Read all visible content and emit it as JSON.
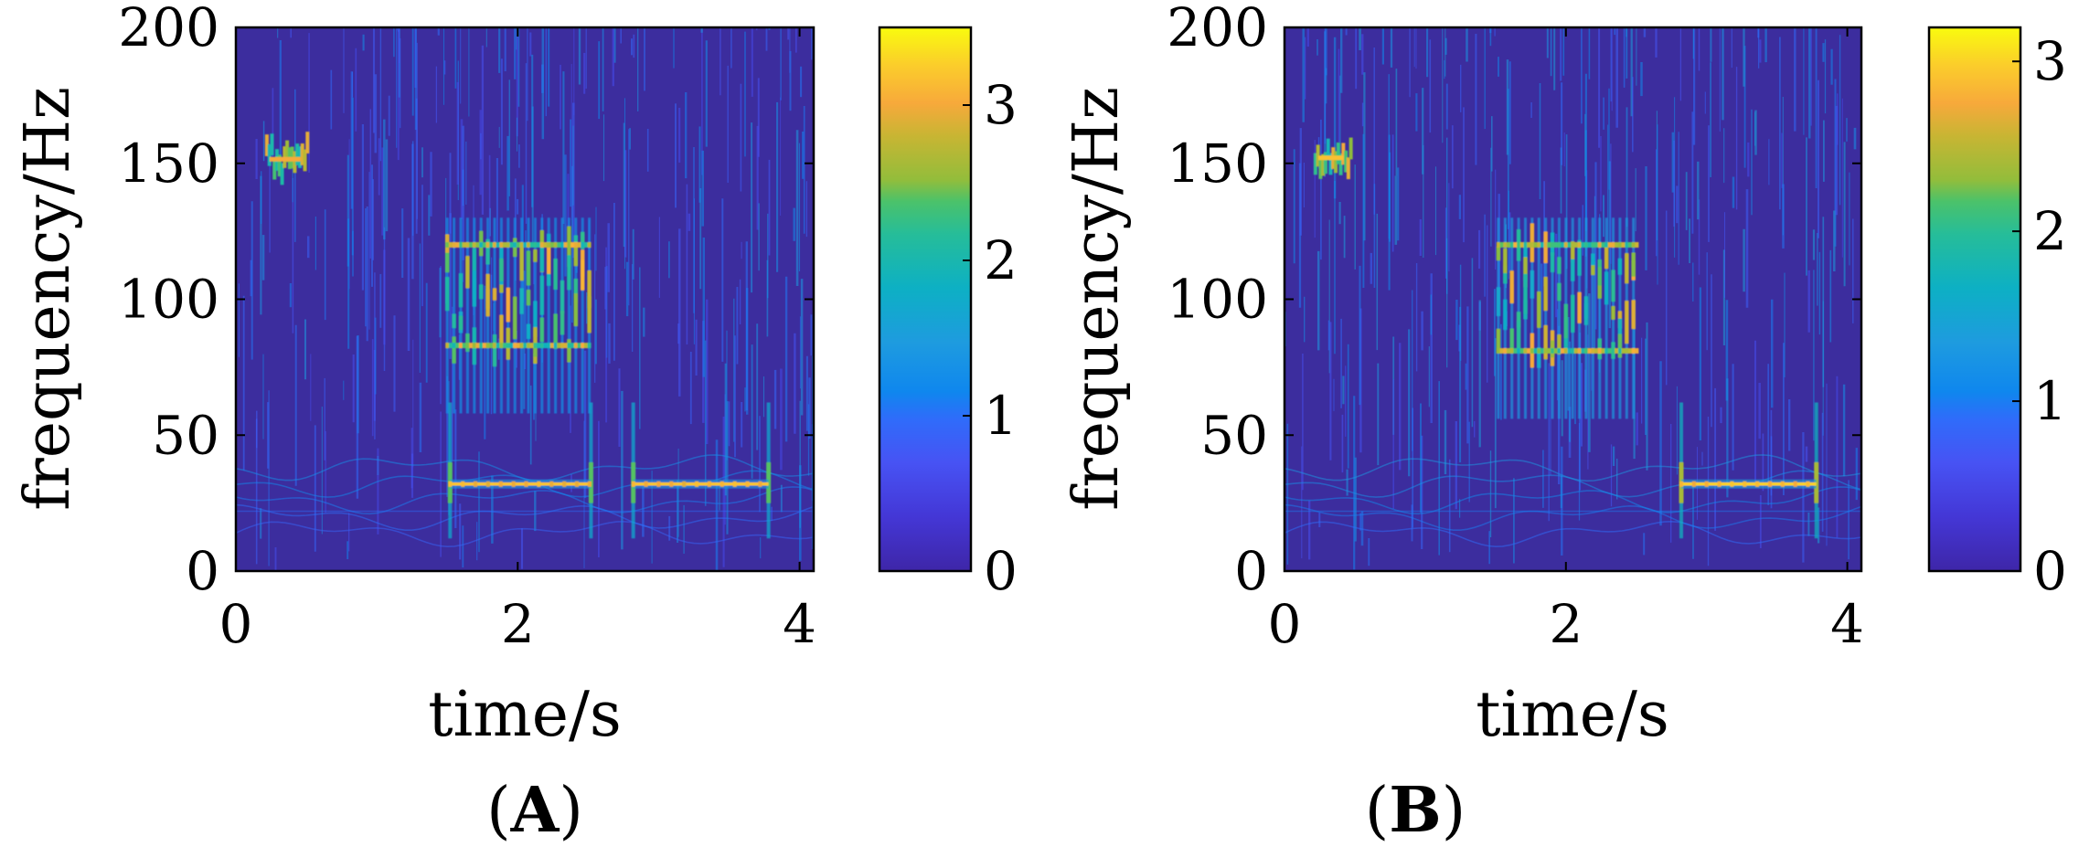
{
  "chart_data": [
    {
      "panel": "A",
      "type": "heatmap",
      "panel_label": {
        "open": "(",
        "letter": "A",
        "close": ")"
      },
      "xlabel": "time/s",
      "ylabel": "frequency/Hz",
      "xlim": [
        0,
        4.1
      ],
      "ylim": [
        0,
        200
      ],
      "xticks": [
        0,
        2,
        4
      ],
      "yticks": [
        0,
        50,
        100,
        150,
        200
      ],
      "colorbar": {
        "range": [
          0,
          3.5
        ],
        "ticks": [
          0,
          1,
          2,
          3
        ],
        "colormap": "parula"
      },
      "features": [
        {
          "kind": "burst",
          "t": [
            0.22,
            0.52
          ],
          "f": [
            145,
            158
          ],
          "intensity": 3.0
        },
        {
          "kind": "comb",
          "t": [
            1.5,
            2.52
          ],
          "f": [
            80,
            122
          ],
          "intensity": 3.1
        },
        {
          "kind": "tone",
          "t": [
            1.52,
            2.52
          ],
          "f": 32,
          "intensity": 3.2
        },
        {
          "kind": "tone",
          "t": [
            2.82,
            3.78
          ],
          "f": 32,
          "intensity": 3.2
        }
      ]
    },
    {
      "panel": "B",
      "type": "heatmap",
      "panel_label": {
        "open": "(",
        "letter": "B",
        "close": ")"
      },
      "xlabel": "time/s",
      "ylabel": "frequency/Hz",
      "xlim": [
        0,
        4.1
      ],
      "ylim": [
        0,
        200
      ],
      "xticks": [
        0,
        2,
        4
      ],
      "yticks": [
        0,
        50,
        100,
        150,
        200
      ],
      "colorbar": {
        "range": [
          0,
          3.2
        ],
        "ticks": [
          0,
          1,
          2,
          3
        ],
        "colormap": "parula"
      },
      "features": [
        {
          "kind": "burst",
          "t": [
            0.22,
            0.48
          ],
          "f": [
            148,
            156
          ],
          "intensity": 2.9
        },
        {
          "kind": "comb",
          "t": [
            1.52,
            2.52
          ],
          "f": [
            78,
            122
          ],
          "intensity": 2.8
        },
        {
          "kind": "tone",
          "t": [
            2.82,
            3.78
          ],
          "f": 32,
          "intensity": 3.0
        }
      ]
    }
  ]
}
